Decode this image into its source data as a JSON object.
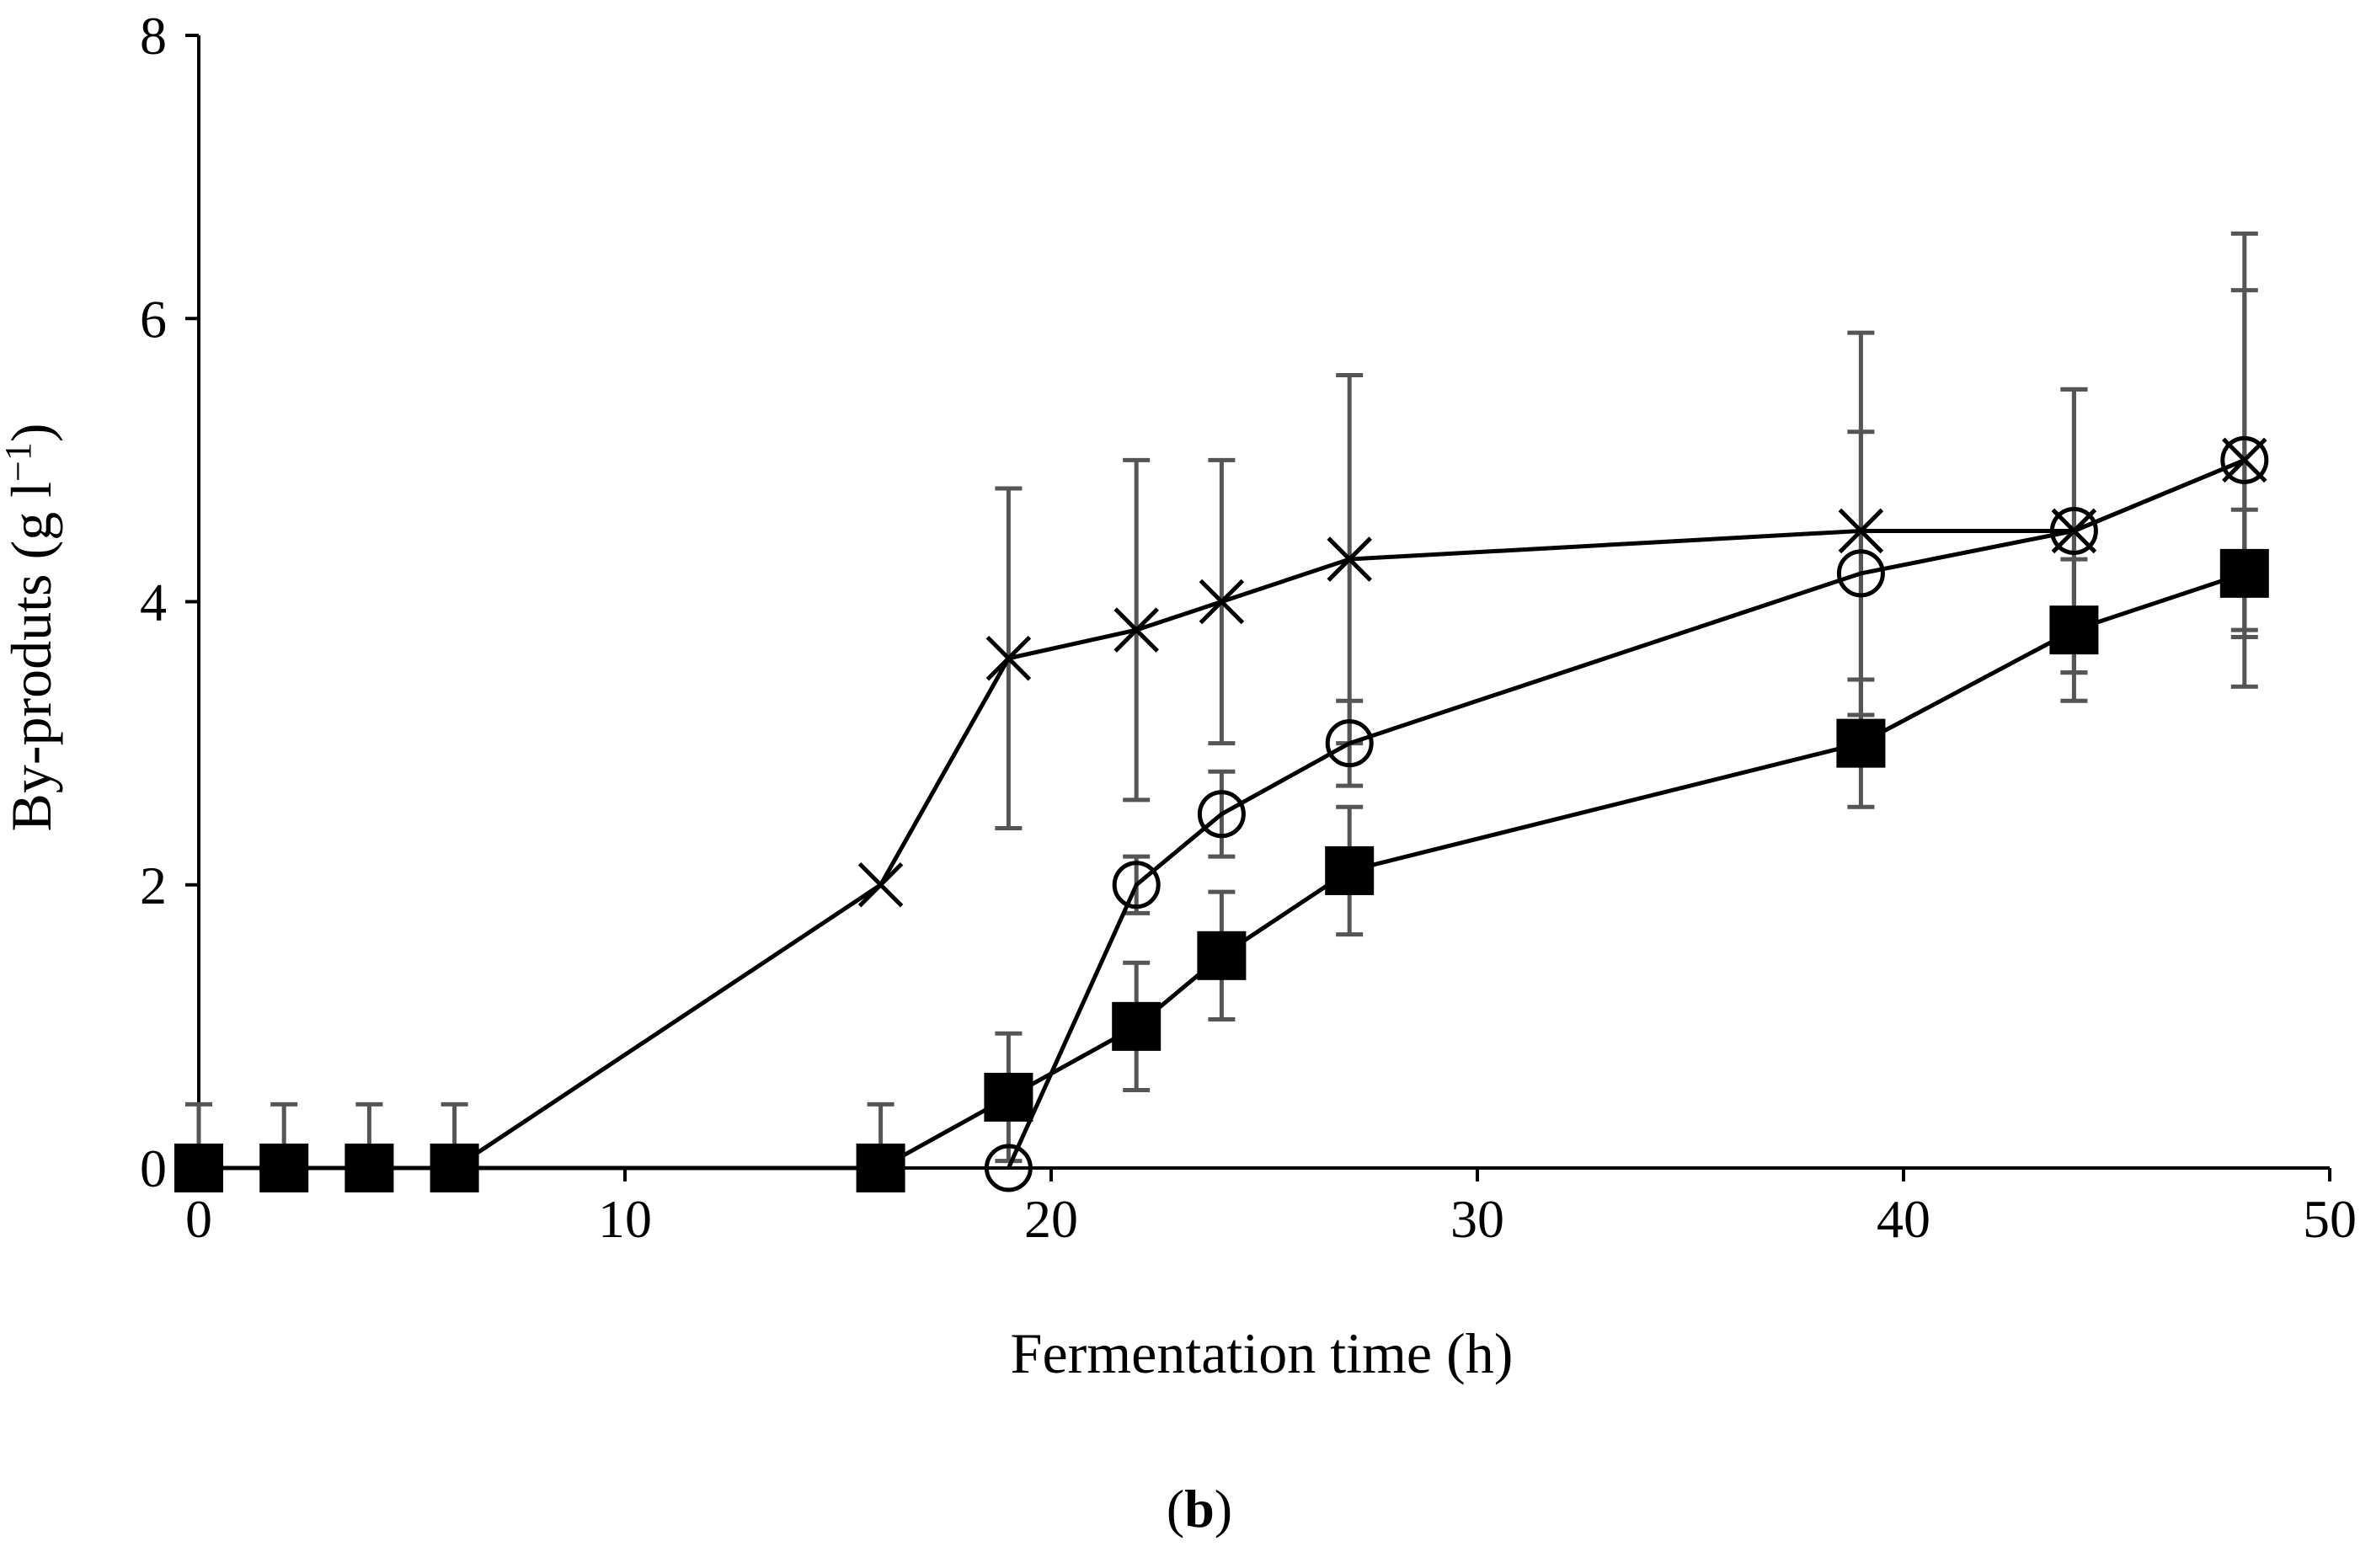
{
  "chart_data": {
    "type": "line",
    "title": "",
    "panel_label_open": "(",
    "panel_label_letter": "b",
    "panel_label_close": ")",
    "xlabel": "Fermentation time (h)",
    "ylabel_main": "By-produts (g l",
    "ylabel_sup": "−1",
    "ylabel_close": ")",
    "xlim": [
      0,
      50
    ],
    "ylim": [
      0,
      8
    ],
    "xticks": [
      0,
      10,
      20,
      30,
      40,
      50
    ],
    "yticks": [
      0,
      2,
      4,
      6,
      8
    ],
    "grid": false,
    "legend": "none",
    "colors": {
      "line": "#000000",
      "errorbar": "#555555"
    },
    "series": [
      {
        "name": "cross",
        "marker": "x",
        "x": [
          0,
          2,
          4,
          6,
          16,
          19,
          22,
          24,
          27,
          39,
          44,
          48
        ],
        "y": [
          0,
          0,
          0,
          0,
          2.0,
          3.6,
          3.8,
          4.0,
          4.3,
          4.5,
          4.5,
          5.0
        ],
        "err": [
          0.45,
          0.45,
          0.45,
          0.45,
          0,
          1.2,
          1.2,
          1.0,
          1.3,
          1.4,
          1.0,
          1.6
        ]
      },
      {
        "name": "open-circle",
        "marker": "circle-open",
        "x": [
          19,
          22,
          24,
          27,
          39,
          44,
          48
        ],
        "y": [
          0,
          2.0,
          2.5,
          3.0,
          4.2,
          4.5,
          5.0
        ],
        "err": [
          0,
          0.2,
          0.3,
          0.3,
          1.0,
          1.0,
          1.2
        ]
      },
      {
        "name": "filled-square",
        "marker": "square-filled",
        "x": [
          0,
          2,
          4,
          6,
          16,
          19,
          22,
          24,
          27,
          39,
          44,
          48
        ],
        "y": [
          0,
          0,
          0,
          0,
          0,
          0.5,
          1.0,
          1.5,
          2.1,
          3.0,
          3.8,
          4.2
        ],
        "err": [
          0,
          0,
          0,
          0,
          0.45,
          0.45,
          0.45,
          0.45,
          0.45,
          0.45,
          0.5,
          0.45
        ]
      }
    ]
  }
}
